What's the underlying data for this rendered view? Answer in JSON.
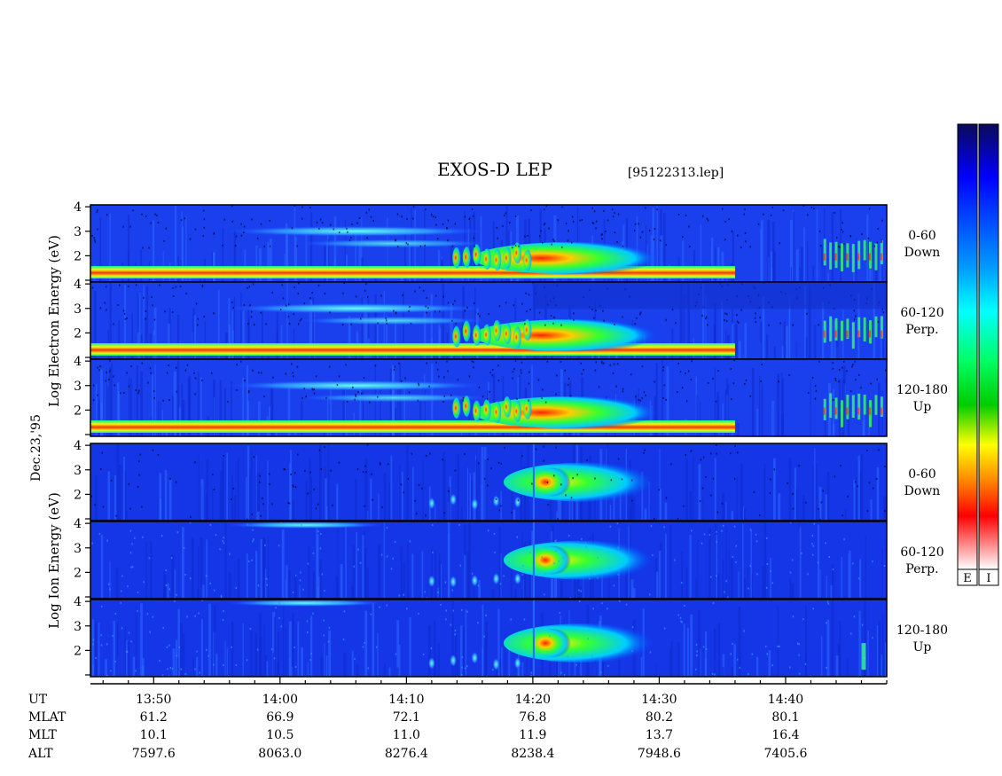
{
  "header": {
    "title": "EXOS-D LEP",
    "file": "[95122313.lep]"
  },
  "left_labels": {
    "date": "Dec.23,'95",
    "electron_axis": "Log Electron Energy (eV)",
    "ion_axis": "Log Ion Energy (eV)"
  },
  "colorbar": {
    "labels": [
      "E",
      "I"
    ],
    "colors_top_to_bottom": [
      "#0a0a5a",
      "#0000ff",
      "#0099ff",
      "#00ffff",
      "#00ff66",
      "#00cc00",
      "#ffff00",
      "#ff8800",
      "#ff0000",
      "#ffffff"
    ]
  },
  "ephemeris": {
    "row_labels": [
      "UT",
      "MLAT",
      "MLT",
      "ALT"
    ],
    "columns": [
      {
        "UT": "13:50",
        "MLAT": "61.2",
        "MLT": "10.1",
        "ALT": "7597.6"
      },
      {
        "UT": "14:00",
        "MLAT": "66.9",
        "MLT": "10.5",
        "ALT": "8063.0"
      },
      {
        "UT": "14:10",
        "MLAT": "72.1",
        "MLT": "11.0",
        "ALT": "8276.4"
      },
      {
        "UT": "14:20",
        "MLAT": "76.8",
        "MLT": "11.9",
        "ALT": "8238.4"
      },
      {
        "UT": "14:30",
        "MLAT": "80.2",
        "MLT": "13.7",
        "ALT": "7948.6"
      },
      {
        "UT": "14:40",
        "MLAT": "80.1",
        "MLT": "16.4",
        "ALT": "7405.6"
      }
    ]
  },
  "chart_data": {
    "type": "heatmap",
    "title": "EXOS-D LEP",
    "x_axis": {
      "label": "UT",
      "ticks": [
        "13:50",
        "14:00",
        "14:10",
        "14:20",
        "14:30",
        "14:40"
      ],
      "range": [
        "13:45",
        "14:48"
      ]
    },
    "y_axis": {
      "label": "Log Energy (eV)",
      "ticks": [
        "1",
        "2",
        "3",
        "4"
      ],
      "range": [
        1,
        4
      ]
    },
    "panels": [
      {
        "species": "Electron",
        "pitch_range": "0-60",
        "direction": "Down"
      },
      {
        "species": "Electron",
        "pitch_range": "60-120",
        "direction": "Perp."
      },
      {
        "species": "Electron",
        "pitch_range": "120-180",
        "direction": "Up"
      },
      {
        "species": "Ion",
        "pitch_range": "0-60",
        "direction": "Down"
      },
      {
        "species": "Ion",
        "pitch_range": "60-120",
        "direction": "Perp."
      },
      {
        "species": "Ion",
        "pitch_range": "120-180",
        "direction": "Up"
      }
    ]
  }
}
